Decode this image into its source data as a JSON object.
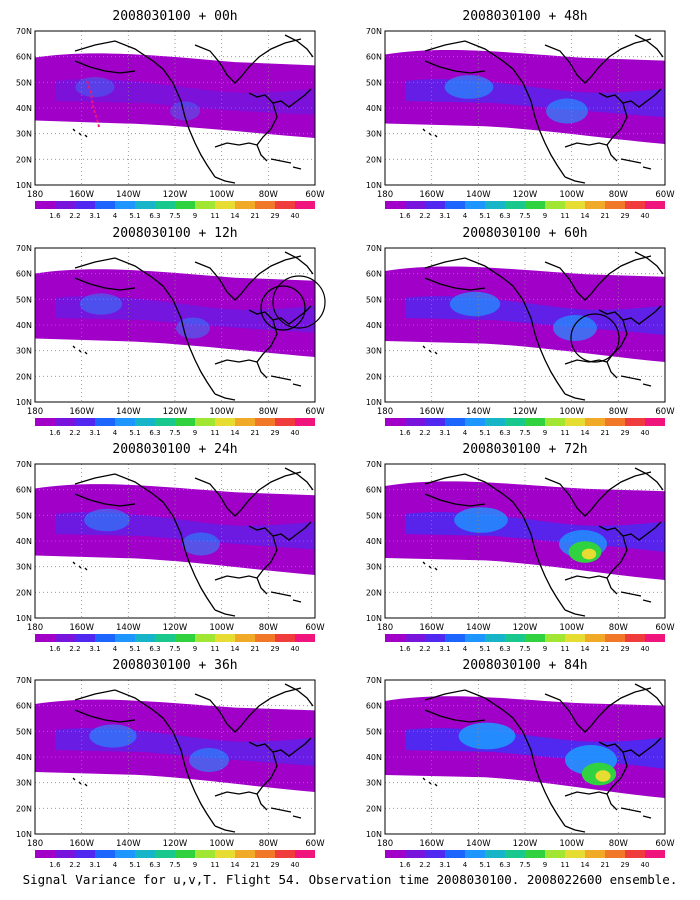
{
  "lat_labels": [
    "70N",
    "60N",
    "50N",
    "40N",
    "30N",
    "20N",
    "10N"
  ],
  "lon_labels": [
    "180",
    "160W",
    "140W",
    "120W",
    "100W",
    "80W",
    "60W"
  ],
  "colorbar": {
    "labels": [
      "1.6",
      "2.2",
      "3.1",
      "4",
      "5.1",
      "6.3",
      "7.5",
      "9",
      "11",
      "14",
      "21",
      "29",
      "40"
    ],
    "colors": [
      "#a000c8",
      "#7814dc",
      "#5028f0",
      "#1e64ff",
      "#1e96ff",
      "#18b4c8",
      "#18c88c",
      "#30d240",
      "#a0e632",
      "#e6dc32",
      "#f0aa28",
      "#f07828",
      "#f03c3c",
      "#f0147d"
    ]
  },
  "panels": [
    {
      "title": "2008030100 + 00h",
      "intensity": 0.35,
      "circles": 0
    },
    {
      "title": "2008030100 + 12h",
      "intensity": 0.45,
      "circles": 2
    },
    {
      "title": "2008030100 + 24h",
      "intensity": 0.55,
      "circles": 0
    },
    {
      "title": "2008030100 + 36h",
      "intensity": 0.6,
      "circles": 0
    },
    {
      "title": "2008030100 + 48h",
      "intensity": 0.65,
      "circles": 0
    },
    {
      "title": "2008030100 + 60h",
      "intensity": 0.7,
      "circles": 1
    },
    {
      "title": "2008030100 + 72h",
      "intensity": 0.8,
      "circles": 0
    },
    {
      "title": "2008030100 + 84h",
      "intensity": 0.9,
      "circles": 0
    }
  ],
  "footer": "Signal Variance for u,v,T. Flight 54. Observation time 2008030100. 2008022600 ensemble."
}
